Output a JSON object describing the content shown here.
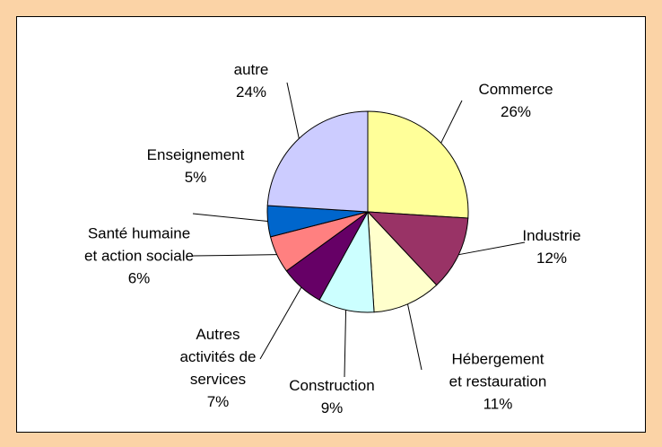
{
  "chart_data": {
    "type": "pie",
    "categories": [
      "Commerce",
      "Industrie",
      "Hébergement et restauration",
      "Construction",
      "Autres activités de services",
      "Santé humaine et action sociale",
      "Enseignement",
      "autre"
    ],
    "values": [
      26,
      12,
      11,
      9,
      7,
      6,
      5,
      24
    ],
    "value_labels": [
      "26%",
      "12%",
      "11%",
      "9%",
      "7%",
      "6%",
      "5%",
      "24%"
    ],
    "colors": [
      "#FFFF99",
      "#993366",
      "#FFFFCC",
      "#CCFFFF",
      "#660066",
      "#FF8080",
      "#0066CC",
      "#CCCCFF"
    ]
  }
}
